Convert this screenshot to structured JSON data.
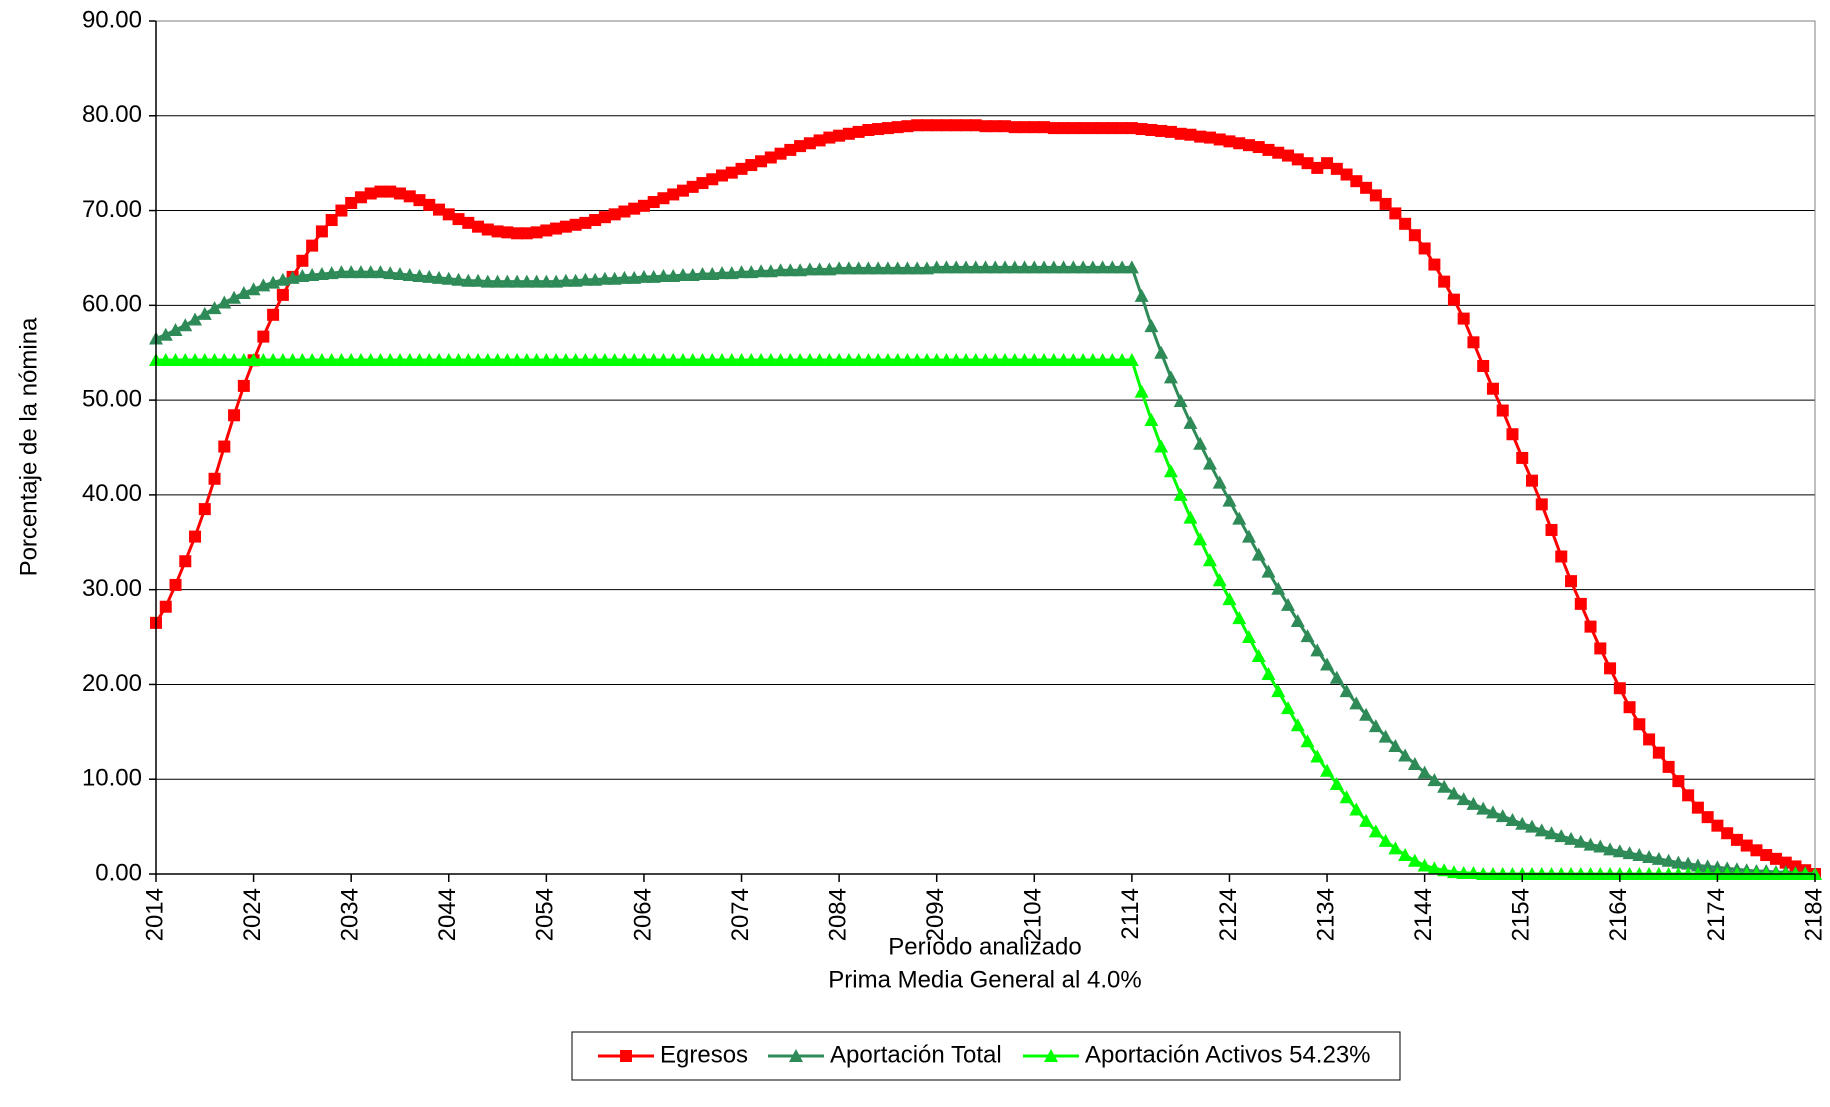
{
  "chart_data": {
    "type": "line",
    "ylabel": "Porcentaje de la nómina",
    "xlabel": "Período analizado",
    "subtitle": "Prima Media General al 4.0%",
    "x": [
      2014,
      2015,
      2016,
      2017,
      2018,
      2019,
      2020,
      2021,
      2022,
      2023,
      2024,
      2025,
      2026,
      2027,
      2028,
      2029,
      2030,
      2031,
      2032,
      2033,
      2034,
      2035,
      2036,
      2037,
      2038,
      2039,
      2040,
      2041,
      2042,
      2043,
      2044,
      2045,
      2046,
      2047,
      2048,
      2049,
      2050,
      2051,
      2052,
      2053,
      2054,
      2055,
      2056,
      2057,
      2058,
      2059,
      2060,
      2061,
      2062,
      2063,
      2064,
      2065,
      2066,
      2067,
      2068,
      2069,
      2070,
      2071,
      2072,
      2073,
      2074,
      2075,
      2076,
      2077,
      2078,
      2079,
      2080,
      2081,
      2082,
      2083,
      2084,
      2085,
      2086,
      2087,
      2088,
      2089,
      2090,
      2091,
      2092,
      2093,
      2094,
      2095,
      2096,
      2097,
      2098,
      2099,
      2100,
      2101,
      2102,
      2103,
      2104,
      2105,
      2106,
      2107,
      2108,
      2109,
      2110,
      2111,
      2112,
      2113,
      2114,
      2115,
      2116,
      2117,
      2118,
      2119,
      2120,
      2121,
      2122,
      2123,
      2124,
      2125,
      2126,
      2127,
      2128,
      2129,
      2130,
      2131,
      2132,
      2133,
      2134,
      2135,
      2136,
      2137,
      2138,
      2139,
      2140,
      2141,
      2142,
      2143,
      2144,
      2145,
      2146,
      2147,
      2148,
      2149,
      2150,
      2151,
      2152,
      2153,
      2154,
      2155,
      2156,
      2157,
      2158,
      2159,
      2160,
      2161,
      2162,
      2163,
      2164,
      2165,
      2166,
      2167,
      2168,
      2169,
      2170,
      2171,
      2172,
      2173,
      2174,
      2175,
      2176,
      2177,
      2178,
      2179,
      2180,
      2181,
      2182,
      2183,
      2184
    ],
    "xlim": [
      2014,
      2184
    ],
    "xticks": [
      2014,
      2024,
      2034,
      2044,
      2054,
      2064,
      2074,
      2084,
      2094,
      2104,
      2114,
      2124,
      2134,
      2144,
      2154,
      2164,
      2174,
      2184
    ],
    "ylim": [
      0,
      90
    ],
    "yticks": [
      {
        "value": 0,
        "label": "0.00"
      },
      {
        "value": 10,
        "label": "10.00"
      },
      {
        "value": 20,
        "label": "20.00"
      },
      {
        "value": 30,
        "label": "30.00"
      },
      {
        "value": 40,
        "label": "40.00"
      },
      {
        "value": 50,
        "label": "50.00"
      },
      {
        "value": 60,
        "label": "60.00"
      },
      {
        "value": 70,
        "label": "70.00"
      },
      {
        "value": 80,
        "label": "80.00"
      },
      {
        "value": 90,
        "label": "90.00"
      }
    ],
    "grid": true,
    "legend": "bottom",
    "series": [
      {
        "name": "Egresos",
        "color": "#ff0000",
        "marker": "square",
        "values": [
          26.5,
          28.2,
          30.5,
          33.0,
          35.6,
          38.5,
          41.7,
          45.1,
          48.4,
          51.5,
          54.2,
          56.7,
          59.0,
          61.1,
          63.0,
          64.7,
          66.3,
          67.8,
          69.0,
          70.0,
          70.8,
          71.4,
          71.8,
          72.0,
          72.0,
          71.8,
          71.5,
          71.1,
          70.6,
          70.1,
          69.6,
          69.1,
          68.7,
          68.3,
          68.0,
          67.8,
          67.7,
          67.6,
          67.6,
          67.7,
          67.9,
          68.1,
          68.3,
          68.5,
          68.7,
          69.0,
          69.3,
          69.6,
          69.9,
          70.2,
          70.5,
          70.9,
          71.3,
          71.7,
          72.1,
          72.5,
          72.9,
          73.3,
          73.7,
          74.0,
          74.4,
          74.8,
          75.2,
          75.6,
          76.0,
          76.4,
          76.8,
          77.1,
          77.4,
          77.7,
          77.9,
          78.1,
          78.3,
          78.5,
          78.6,
          78.7,
          78.8,
          78.9,
          79.0,
          79.0,
          79.0,
          79.0,
          79.0,
          79.0,
          79.0,
          78.9,
          78.9,
          78.9,
          78.8,
          78.8,
          78.8,
          78.8,
          78.7,
          78.7,
          78.7,
          78.7,
          78.7,
          78.7,
          78.7,
          78.7,
          78.7,
          78.6,
          78.5,
          78.4,
          78.3,
          78.1,
          78.0,
          77.8,
          77.7,
          77.5,
          77.3,
          77.1,
          76.9,
          76.7,
          76.4,
          76.1,
          75.8,
          75.4,
          75.0,
          74.5,
          75.0,
          74.4,
          73.8,
          73.1,
          72.4,
          71.6,
          70.7,
          69.7,
          68.6,
          67.4,
          66.0,
          64.3,
          62.5,
          60.6,
          58.6,
          56.1,
          53.6,
          51.2,
          48.9,
          46.4,
          43.9,
          41.5,
          39.0,
          36.3,
          33.5,
          30.9,
          28.5,
          26.1,
          23.8,
          21.7,
          19.6,
          17.6,
          15.8,
          14.2,
          12.8,
          11.3,
          9.8,
          8.3,
          7.0,
          6.0,
          5.1,
          4.3,
          3.6,
          3.0,
          2.5,
          2.0,
          1.6,
          1.2,
          0.8,
          0.4,
          0.0
        ]
      },
      {
        "name": "Aportación Total",
        "color": "#2e8b57",
        "marker": "triangle",
        "values": [
          56.5,
          56.9,
          57.4,
          57.9,
          58.5,
          59.1,
          59.7,
          60.3,
          60.8,
          61.3,
          61.7,
          62.1,
          62.4,
          62.7,
          62.9,
          63.1,
          63.2,
          63.3,
          63.4,
          63.5,
          63.5,
          63.5,
          63.5,
          63.5,
          63.4,
          63.3,
          63.2,
          63.1,
          63.0,
          62.9,
          62.8,
          62.7,
          62.6,
          62.6,
          62.5,
          62.5,
          62.5,
          62.5,
          62.5,
          62.5,
          62.5,
          62.5,
          62.6,
          62.6,
          62.7,
          62.7,
          62.8,
          62.8,
          62.9,
          62.9,
          63.0,
          63.0,
          63.1,
          63.1,
          63.2,
          63.2,
          63.3,
          63.3,
          63.4,
          63.4,
          63.5,
          63.5,
          63.6,
          63.6,
          63.7,
          63.7,
          63.7,
          63.8,
          63.8,
          63.8,
          63.9,
          63.9,
          63.9,
          63.9,
          63.9,
          63.9,
          63.9,
          63.9,
          63.9,
          63.9,
          64.0,
          64.0,
          64.0,
          64.0,
          64.0,
          64.0,
          64.0,
          64.0,
          64.0,
          64.0,
          64.0,
          64.0,
          64.0,
          64.0,
          64.0,
          64.0,
          64.0,
          64.0,
          64.0,
          64.0,
          64.0,
          61.0,
          57.8,
          55.0,
          52.4,
          49.9,
          47.6,
          45.4,
          43.3,
          41.3,
          39.4,
          37.5,
          35.6,
          33.7,
          31.9,
          30.1,
          28.4,
          26.7,
          25.1,
          23.6,
          22.1,
          20.7,
          19.3,
          18.0,
          16.8,
          15.6,
          14.5,
          13.5,
          12.5,
          11.6,
          10.7,
          9.9,
          9.2,
          8.5,
          7.9,
          7.4,
          6.9,
          6.5,
          6.1,
          5.7,
          5.3,
          5.0,
          4.6,
          4.3,
          4.0,
          3.7,
          3.4,
          3.1,
          2.9,
          2.6,
          2.4,
          2.2,
          2.0,
          1.8,
          1.6,
          1.4,
          1.2,
          1.1,
          0.9,
          0.8,
          0.7,
          0.6,
          0.5,
          0.4,
          0.3,
          0.3,
          0.2,
          0.2,
          0.1,
          0.1,
          0.0
        ]
      },
      {
        "name": "Aportación Activos 54.23%",
        "color": "#00ff00",
        "marker": "triangle",
        "values": [
          54.23,
          54.23,
          54.23,
          54.23,
          54.23,
          54.23,
          54.23,
          54.23,
          54.23,
          54.23,
          54.23,
          54.23,
          54.23,
          54.23,
          54.23,
          54.23,
          54.23,
          54.23,
          54.23,
          54.23,
          54.23,
          54.23,
          54.23,
          54.23,
          54.23,
          54.23,
          54.23,
          54.23,
          54.23,
          54.23,
          54.23,
          54.23,
          54.23,
          54.23,
          54.23,
          54.23,
          54.23,
          54.23,
          54.23,
          54.23,
          54.23,
          54.23,
          54.23,
          54.23,
          54.23,
          54.23,
          54.23,
          54.23,
          54.23,
          54.23,
          54.23,
          54.23,
          54.23,
          54.23,
          54.23,
          54.23,
          54.23,
          54.23,
          54.23,
          54.23,
          54.23,
          54.23,
          54.23,
          54.23,
          54.23,
          54.23,
          54.23,
          54.23,
          54.23,
          54.23,
          54.23,
          54.23,
          54.23,
          54.23,
          54.23,
          54.23,
          54.23,
          54.23,
          54.23,
          54.23,
          54.23,
          54.23,
          54.23,
          54.23,
          54.23,
          54.23,
          54.23,
          54.23,
          54.23,
          54.23,
          54.23,
          54.23,
          54.23,
          54.23,
          54.23,
          54.23,
          54.23,
          54.23,
          54.23,
          54.23,
          54.23,
          50.9,
          47.9,
          45.1,
          42.5,
          40.0,
          37.6,
          35.3,
          33.1,
          31.0,
          29.0,
          27.0,
          25.0,
          23.0,
          21.1,
          19.3,
          17.5,
          15.7,
          14.0,
          12.4,
          10.9,
          9.5,
          8.1,
          6.8,
          5.6,
          4.5,
          3.5,
          2.7,
          2.0,
          1.4,
          0.9,
          0.6,
          0.4,
          0.2,
          0.1,
          0.1,
          0,
          0,
          0,
          0,
          0,
          0,
          0,
          0,
          0,
          0,
          0,
          0,
          0,
          0,
          0,
          0,
          0,
          0,
          0,
          0,
          0,
          0,
          0,
          0,
          0,
          0,
          0,
          0,
          0,
          0,
          0,
          0,
          0,
          0,
          0
        ]
      }
    ]
  }
}
